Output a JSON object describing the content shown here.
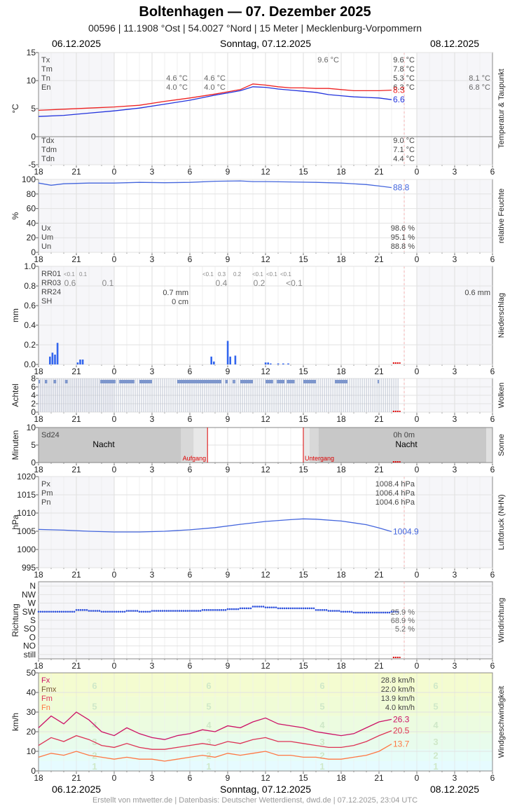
{
  "header": {
    "title": "Boltenhagen  —  07. Dezember 2025",
    "subtitle": "00596  |  11.1908 °Ost  |  54.0027 °Nord  |  15 Meter  |  Mecklenburg-Vorpommern",
    "date_left": "06.12.2025",
    "date_center": "Sonntag, 07.12.2025",
    "date_right": "08.12.2025"
  },
  "footer": "Erstellt von mtwetter.de | Datenbasis: Deutscher Wetterdienst, dwd.de | 07.12.2025, 23:04 UTC",
  "x_ticks": [
    "18",
    "21",
    "0",
    "3",
    "6",
    "9",
    "12",
    "15",
    "18",
    "21",
    "0",
    "3",
    "6"
  ],
  "chart_data": [
    {
      "id": "temperature",
      "type": "line",
      "ylabel": "°C",
      "side_label": "Temperatur & Taupunkt",
      "ylim": [
        -5,
        15
      ],
      "y_ticks": [
        -5,
        0,
        5,
        10,
        15
      ],
      "x_hours_range": [
        -6,
        30
      ],
      "stats_left": [
        "Tx",
        "Tm",
        "Tn",
        "En"
      ],
      "stats_left_bottom": [
        "Tdx",
        "Tdm",
        "Tdn"
      ],
      "stats_right": [
        "9.6 °C",
        "7.8 °C",
        "5.3 °C",
        "6.3 °C"
      ],
      "stats_right_bottom": [
        "9.0 °C",
        "7.1 °C",
        "4.4 °C"
      ],
      "prev_day_values": [
        "4.6 °C",
        "4.0 °C"
      ],
      "prev_day_values_2": [
        "4.6 °C",
        "4.0 °C"
      ],
      "peak_label": "9.6 °C",
      "next_day_values": [
        "8.1 °C",
        "6.8 °C"
      ],
      "series": [
        {
          "name": "Temperatur",
          "color": "#ee2222",
          "last_label": "8.3",
          "x": [
            -6,
            -4,
            -2,
            0,
            2,
            4,
            6,
            8,
            9,
            10,
            11,
            12,
            13,
            14,
            15,
            16,
            17,
            18,
            19,
            20,
            21,
            22
          ],
          "y": [
            4.7,
            4.9,
            5.1,
            5.3,
            5.6,
            6.3,
            6.9,
            7.6,
            8.0,
            8.4,
            9.4,
            9.2,
            8.9,
            8.7,
            8.7,
            8.6,
            8.6,
            8.4,
            8.2,
            8.2,
            8.2,
            8.3
          ]
        },
        {
          "name": "Taupunkt",
          "color": "#2233dd",
          "last_label": "6.6",
          "x": [
            -6,
            -4,
            -2,
            0,
            2,
            4,
            6,
            8,
            9,
            10,
            11,
            12,
            13,
            14,
            15,
            16,
            17,
            18,
            19,
            20,
            21,
            22
          ],
          "y": [
            3.6,
            3.8,
            4.2,
            4.6,
            5.1,
            5.8,
            6.5,
            7.4,
            7.8,
            8.2,
            8.9,
            8.8,
            8.5,
            8.3,
            8.1,
            7.9,
            7.5,
            7.3,
            7.1,
            7.0,
            6.9,
            6.6
          ]
        }
      ]
    },
    {
      "id": "humidity",
      "type": "line",
      "ylabel": "%",
      "side_label": "relative Feuchte",
      "ylim": [
        0,
        100
      ],
      "y_ticks": [
        0,
        20,
        40,
        60,
        80,
        100
      ],
      "stats_left": [
        "Ux",
        "Um",
        "Un"
      ],
      "stats_right": [
        "98.6 %",
        "95.1 %",
        "88.8 %"
      ],
      "series": [
        {
          "name": "Feuchte",
          "color": "#4466dd",
          "last_label": "88.8",
          "x": [
            -6,
            -5,
            -4,
            -2,
            0,
            2,
            4,
            6,
            8,
            10,
            11,
            12,
            14,
            16,
            18,
            20,
            21,
            22
          ],
          "y": [
            95,
            92,
            94,
            95,
            95,
            96,
            95.5,
            96,
            97.5,
            98,
            97,
            97,
            96.5,
            96,
            95,
            93,
            91,
            88.8
          ]
        }
      ]
    },
    {
      "id": "precipitation",
      "type": "bar",
      "ylabel": "mm",
      "side_label": "Niederschlag",
      "ylim": [
        0,
        1.0
      ],
      "y_ticks": [
        "0.0",
        "0.2",
        "0.4",
        "0.6",
        "0.8",
        "1.0"
      ],
      "stats_left": [
        "RR01",
        "RR03",
        "RR24",
        "SH"
      ],
      "rr01_a": [
        "<0.1",
        "0.1"
      ],
      "rr01_b": [
        "<0.1",
        "0.3",
        "0.2"
      ],
      "rr01_c": [
        "<0.1",
        "<0.1",
        "<0.1"
      ],
      "rr03": [
        "0.6",
        "0.1",
        "0.4",
        "0.2",
        "<0.1"
      ],
      "rr24": "0.7 mm",
      "sh": "0 cm",
      "next_day": "0.6 mm",
      "x": [
        -5.1,
        -4.9,
        -4.7,
        -4.5,
        -2.9,
        -2.7,
        -2.5,
        7.7,
        7.9,
        9.0,
        9.2,
        9.6,
        12.0,
        12.2,
        12.4,
        13.0,
        13.4,
        13.8
      ],
      "values": [
        0.08,
        0.12,
        0.1,
        0.22,
        0.02,
        0.05,
        0.05,
        0.08,
        0.03,
        0.24,
        0.08,
        0.09,
        0.02,
        0.02,
        0.01,
        0.01,
        0.01,
        0.01
      ],
      "color": "#3366ee"
    },
    {
      "id": "clouds",
      "type": "bar",
      "ylabel": "Achtel",
      "side_label": "Wolken",
      "ylim": [
        0,
        8
      ],
      "y_ticks": [
        0,
        2,
        4,
        6,
        8
      ],
      "value": 8,
      "gray_ranges": [
        [
          -6,
          -5.9
        ],
        [
          -5.5,
          -5.3
        ],
        [
          -4.8,
          -4.6
        ],
        [
          -3.9,
          -3.7
        ],
        [
          -1.1,
          0.1
        ],
        [
          0.4,
          1.6
        ],
        [
          2.0,
          3.0
        ],
        [
          5.0,
          8.5
        ],
        [
          8.8,
          9.0
        ],
        [
          9.4,
          9.6
        ],
        [
          10.0,
          11.0
        ],
        [
          12.0,
          12.6
        ],
        [
          12.9,
          13.5
        ],
        [
          13.7,
          14.3
        ],
        [
          15.0,
          16.0
        ],
        [
          17.5,
          18.5
        ],
        [
          20.9,
          21.0
        ]
      ],
      "color": "#99aacc"
    },
    {
      "id": "sunshine",
      "type": "area",
      "ylabel": "Minuten",
      "side_label": "Sonne",
      "ylim": [
        0,
        10
      ],
      "y_ticks": [
        0,
        5,
        10
      ],
      "stat_label": "Sd24",
      "stat_value": "0h 0m",
      "night_label": "Nacht",
      "sunrise_label": "Aufgang",
      "sunset_label": "Untergang",
      "sunrise_hour": 7.4,
      "sunset_hour": 15.0
    },
    {
      "id": "pressure",
      "type": "line",
      "ylabel": "hPa",
      "side_label": "Luftdruck (NHN)",
      "ylim": [
        995,
        1020
      ],
      "y_ticks": [
        995,
        1000,
        1005,
        1010,
        1015,
        1020
      ],
      "stats_left": [
        "Px",
        "Pm",
        "Pn"
      ],
      "stats_right": [
        "1008.4 hPa",
        "1006.4 hPa",
        "1004.6 hPa"
      ],
      "series": [
        {
          "name": "Luftdruck",
          "color": "#4466dd",
          "last_label": "1004.9",
          "x": [
            -6,
            -4,
            -2,
            0,
            2,
            4,
            6,
            8,
            10,
            12,
            14,
            15,
            16,
            18,
            20,
            21,
            22
          ],
          "y": [
            1005.5,
            1005.3,
            1005.0,
            1004.8,
            1004.8,
            1005.0,
            1005.4,
            1006.0,
            1006.9,
            1007.7,
            1008.2,
            1008.4,
            1008.3,
            1007.8,
            1006.8,
            1005.9,
            1004.9
          ]
        }
      ]
    },
    {
      "id": "wind_direction",
      "type": "scatter",
      "ylabel": "Richtung",
      "side_label": "Windrichtung",
      "categories": [
        "still",
        "N",
        "NO",
        "O",
        "SO",
        "S",
        "SW",
        "W",
        "NW",
        "N"
      ],
      "y_tick_labels": [
        "N",
        "NW",
        "W",
        "SW",
        "S",
        "SO",
        "O",
        "NO",
        "still"
      ],
      "stats_right": [
        "25.9 %",
        "68.9 %",
        "5.2 %"
      ],
      "x": [
        -6,
        -5,
        -4,
        -3,
        -2,
        -1,
        0,
        1,
        2,
        3,
        4,
        5,
        6,
        7,
        8,
        9,
        10,
        11,
        12,
        13,
        14,
        15,
        16,
        17,
        18,
        19,
        20,
        21,
        22
      ],
      "values": [
        5.0,
        5.0,
        5.0,
        5.2,
        5.1,
        5.0,
        5.0,
        5.1,
        5.0,
        5.1,
        5.1,
        5.1,
        5.1,
        5.2,
        5.2,
        5.3,
        5.4,
        5.6,
        5.5,
        5.4,
        5.4,
        5.4,
        5.2,
        5.1,
        5.0,
        4.9,
        4.9,
        4.9,
        5.0
      ],
      "color": "#3355dd"
    },
    {
      "id": "wind_speed",
      "type": "line",
      "ylabel": "km/h",
      "side_label": "Windgeschwindigkeit",
      "ylim": [
        0,
        50
      ],
      "y_ticks": [
        0,
        10,
        20,
        30,
        40,
        50
      ],
      "stats_left": [
        "Fx",
        "Fmx",
        "Fm",
        "Fn"
      ],
      "stats_right": [
        "28.8 km/h",
        "22.0 km/h",
        "13.9 km/h",
        "4.0 km/h"
      ],
      "beaufort": [
        "1",
        "2",
        "3",
        "4",
        "5",
        "6"
      ],
      "series": [
        {
          "name": "Fx",
          "color": "#cc1166",
          "last_label": "26.3",
          "x": [
            -6,
            -5,
            -4,
            -3,
            -2,
            -1,
            0,
            1,
            2,
            3,
            4,
            5,
            6,
            7,
            8,
            9,
            10,
            11,
            12,
            13,
            14,
            15,
            16,
            17,
            18,
            19,
            20,
            21,
            22
          ],
          "y": [
            22,
            28,
            24,
            30,
            26,
            20,
            18,
            22,
            19,
            17,
            16,
            18,
            19,
            21,
            20,
            23,
            22,
            25,
            27,
            24,
            23,
            22,
            20,
            19,
            18,
            19,
            22,
            25,
            26.3
          ]
        },
        {
          "name": "Fm",
          "color": "#dd3355",
          "last_label": "20.5",
          "x": [
            -6,
            -5,
            -4,
            -3,
            -2,
            -1,
            0,
            1,
            2,
            3,
            4,
            5,
            6,
            7,
            8,
            9,
            10,
            11,
            12,
            13,
            14,
            15,
            16,
            17,
            18,
            19,
            20,
            21,
            22
          ],
          "y": [
            13,
            17,
            15,
            18,
            16,
            13,
            12,
            14,
            12,
            11,
            11,
            12,
            13,
            14,
            13,
            15,
            14,
            16,
            17,
            15,
            15,
            14,
            13,
            12,
            12,
            13,
            15,
            18,
            20.5
          ]
        },
        {
          "name": "Fn",
          "color": "#ff7744",
          "last_label": "13.7",
          "x": [
            -6,
            -5,
            -4,
            -3,
            -2,
            -1,
            0,
            1,
            2,
            3,
            4,
            5,
            6,
            7,
            8,
            9,
            10,
            11,
            12,
            13,
            14,
            15,
            16,
            17,
            18,
            19,
            20,
            21,
            22
          ],
          "y": [
            7,
            9,
            8,
            10,
            8,
            7,
            6,
            7,
            6,
            6,
            5,
            6,
            7,
            8,
            7,
            9,
            8,
            9,
            10,
            8,
            8,
            7,
            7,
            6,
            6,
            7,
            8,
            10,
            13.7
          ]
        }
      ]
    }
  ]
}
